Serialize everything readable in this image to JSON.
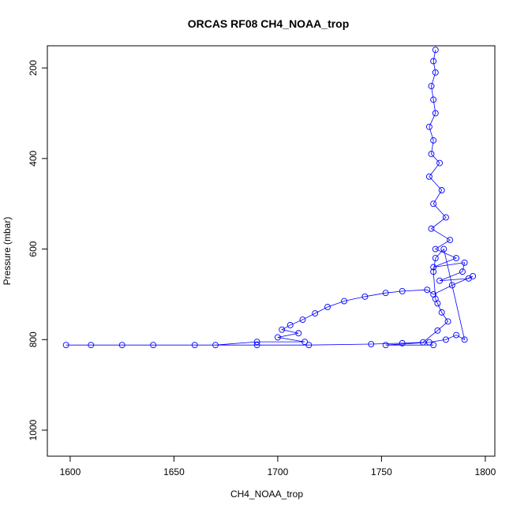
{
  "chart_data": {
    "type": "scatter",
    "title": "ORCAS RF08 CH4_NOAA_trop",
    "x_label": "CH4_NOAA_trop",
    "y_label": "Pressure (mbar)",
    "xlim": [
      1589,
      1804.6
    ],
    "ylim": [
      151,
      1057.5
    ],
    "y_reversed": true,
    "xticks": [
      1600,
      1650,
      1700,
      1750,
      1800
    ],
    "yticks": [
      200,
      400,
      600,
      800,
      1000
    ],
    "color": "#0000ff",
    "connect_points": true,
    "x": [
      1776,
      1775,
      1776,
      1774,
      1775,
      1776,
      1773,
      1775,
      1774,
      1778,
      1773,
      1779,
      1775,
      1781,
      1774,
      1783,
      1776,
      1786,
      1775,
      1790,
      1789,
      1778,
      1792,
      1794,
      1784,
      1775,
      1772,
      1760,
      1752,
      1742,
      1732,
      1724,
      1718,
      1712,
      1706,
      1702,
      1710,
      1700,
      1713,
      1690,
      1670,
      1640,
      1610,
      1598,
      1625,
      1660,
      1690,
      1715,
      1745,
      1760,
      1770,
      1777,
      1782,
      1779,
      1777,
      1776,
      1775,
      1776,
      1780,
      1790,
      1786,
      1781,
      1773,
      1752,
      1775
    ],
    "y": [
      160,
      185,
      210,
      240,
      270,
      300,
      330,
      360,
      390,
      410,
      440,
      470,
      500,
      530,
      555,
      580,
      600,
      620,
      640,
      630,
      650,
      670,
      665,
      660,
      680,
      700,
      690,
      693,
      697,
      705,
      715,
      728,
      742,
      756,
      768,
      778,
      786,
      795,
      805,
      805,
      812,
      812,
      812,
      812,
      812,
      812,
      812,
      812,
      810,
      808,
      806,
      780,
      760,
      740,
      720,
      710,
      650,
      620,
      600,
      800,
      790,
      800,
      806,
      812,
      812
    ]
  }
}
